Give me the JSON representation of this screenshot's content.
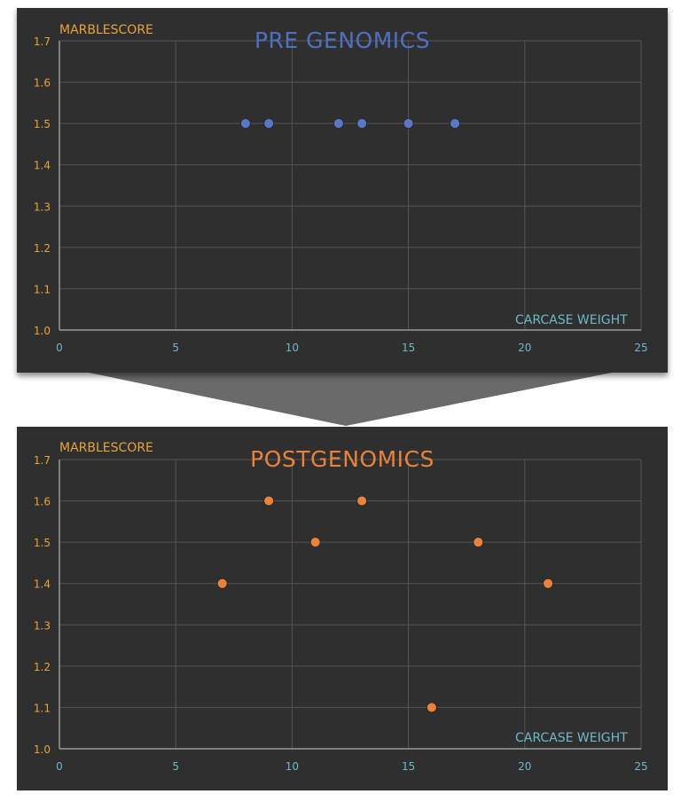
{
  "chart_data": [
    {
      "type": "scatter",
      "title": "PRE GENOMICS",
      "xlabel": "CARCASE WEIGHT",
      "ylabel": "MARBLESCORE",
      "xlim": [
        0,
        25
      ],
      "ylim": [
        1.0,
        1.7
      ],
      "xticks": [
        "0",
        "5",
        "10",
        "15",
        "20",
        "25"
      ],
      "yticks": [
        "1.0",
        "1.1",
        "1.2",
        "1.3",
        "1.4",
        "1.5",
        "1.6",
        "1.7"
      ],
      "grid": true,
      "colors": {
        "points": "#5a76c4",
        "title": "#4f6fc0"
      },
      "points": [
        {
          "x": 8,
          "y": 1.5
        },
        {
          "x": 9,
          "y": 1.5
        },
        {
          "x": 12,
          "y": 1.5
        },
        {
          "x": 13,
          "y": 1.5
        },
        {
          "x": 15,
          "y": 1.5
        },
        {
          "x": 17,
          "y": 1.5
        }
      ]
    },
    {
      "type": "scatter",
      "title": "POSTGENOMICS",
      "xlabel": "CARCASE WEIGHT",
      "ylabel": "MARBLESCORE",
      "xlim": [
        0,
        25
      ],
      "ylim": [
        1.0,
        1.7
      ],
      "xticks": [
        "0",
        "5",
        "10",
        "15",
        "20",
        "25"
      ],
      "yticks": [
        "1.0",
        "1.1",
        "1.2",
        "1.3",
        "1.4",
        "1.5",
        "1.6",
        "1.7"
      ],
      "grid": true,
      "colors": {
        "points": "#e8823c",
        "title": "#e8823c"
      },
      "points": [
        {
          "x": 7,
          "y": 1.4
        },
        {
          "x": 9,
          "y": 1.6
        },
        {
          "x": 11,
          "y": 1.5
        },
        {
          "x": 13,
          "y": 1.6
        },
        {
          "x": 16,
          "y": 1.1
        },
        {
          "x": 18,
          "y": 1.5
        },
        {
          "x": 21,
          "y": 1.4
        }
      ]
    }
  ]
}
